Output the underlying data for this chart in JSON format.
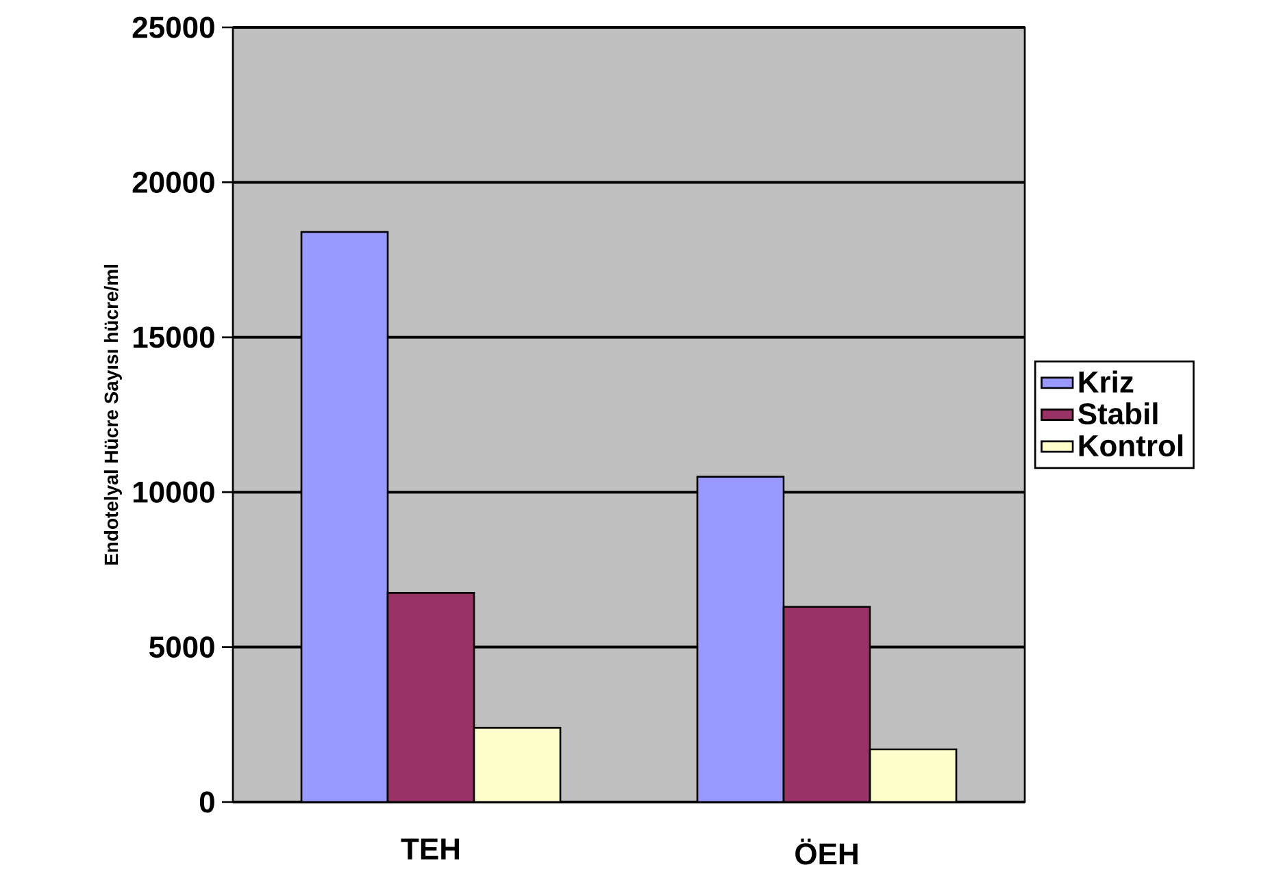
{
  "chart_data": {
    "type": "bar",
    "ylabel": "Endotelyal Hücre Sayısı hücre/ml",
    "categories": [
      "TEH",
      "ÖEH"
    ],
    "series": [
      {
        "name": "Kriz",
        "color": "#9999ff",
        "values": [
          18400,
          10500
        ]
      },
      {
        "name": "Stabil",
        "color": "#993366",
        "values": [
          6750,
          6300
        ]
      },
      {
        "name": "Kontrol",
        "color": "#ffffcc",
        "values": [
          2400,
          1700
        ]
      }
    ],
    "ylim": [
      0,
      25000
    ],
    "yticks": [
      0,
      5000,
      10000,
      15000,
      20000,
      25000
    ],
    "grid": "y",
    "legend": "right"
  }
}
